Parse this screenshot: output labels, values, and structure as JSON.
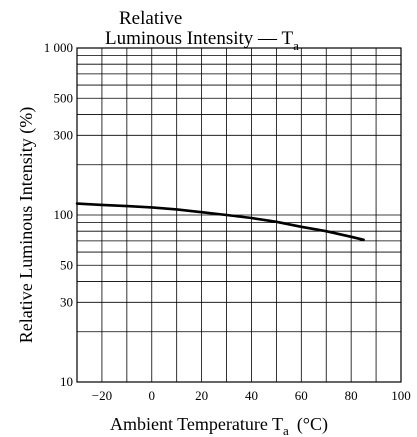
{
  "chart_data": {
    "type": "line",
    "title_line1": "Relative",
    "title_line2_main": "Luminous Intensity — T",
    "title_line2_sub": "a",
    "xlabel_main": "Ambient Temperature  T",
    "xlabel_sub": "a",
    "xlabel_unit": "(°C)",
    "ylabel": "Relative Luminous Intensity  (%)",
    "xlim": [
      -30,
      100
    ],
    "ylim": [
      10,
      1000
    ],
    "yscale": "log",
    "grid": true,
    "x_ticks": [
      "−20",
      "0",
      "20",
      "40",
      "60",
      "80",
      "100"
    ],
    "y_ticks": [
      {
        "value": 1000,
        "label": "1 000"
      },
      {
        "value": 500,
        "label": "500"
      },
      {
        "value": 300,
        "label": "300"
      },
      {
        "value": 100,
        "label": "100"
      },
      {
        "value": 50,
        "label": "50"
      },
      {
        "value": 30,
        "label": "30"
      },
      {
        "value": 10,
        "label": "10"
      }
    ],
    "series": [
      {
        "x": [
          -30,
          -20,
          -10,
          0,
          10,
          20,
          30,
          40,
          50,
          60,
          70,
          80,
          85
        ],
        "y": [
          117,
          115,
          113,
          111,
          108,
          104,
          100,
          96,
          91,
          85,
          80,
          74,
          71
        ]
      }
    ]
  }
}
